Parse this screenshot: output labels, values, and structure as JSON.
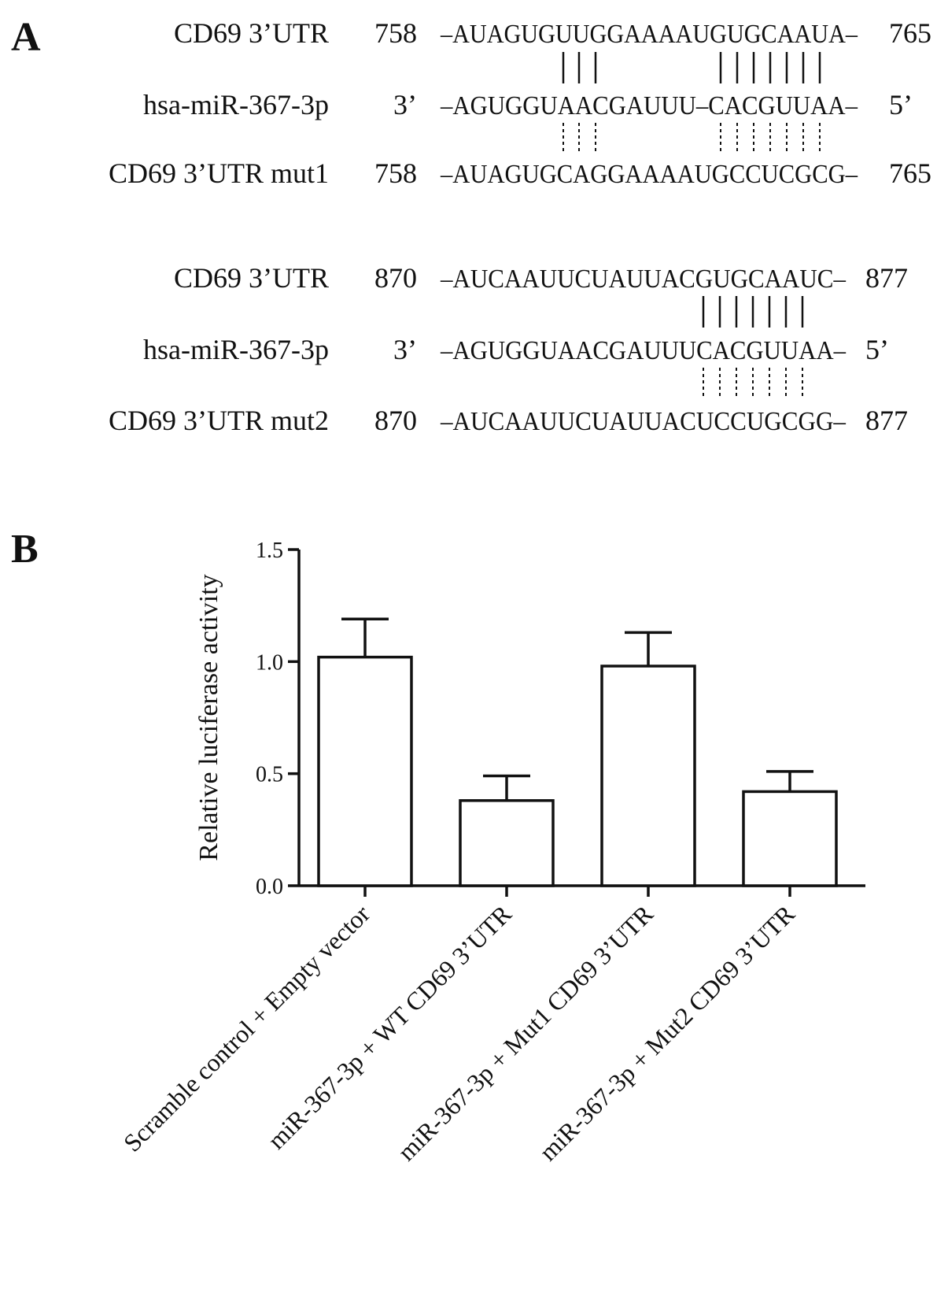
{
  "panel_a": {
    "letter": "A",
    "blocks": [
      {
        "rows": [
          {
            "label": "CD69 3’UTR",
            "start": "758",
            "seq": "–AUAGUGUUGGAAAAUGUGCAAUA–",
            "end": "765"
          },
          {
            "label": "hsa-miR-367-3p",
            "start": "3’",
            "seq": "–AGUGGUAACGAUUU–CACGUUAA–",
            "end": "5’"
          },
          {
            "label": "CD69 3’UTR mut1",
            "start": "758",
            "seq": "–AUAGUGCAGGAAAAUGCCUCGCG–",
            "end": "765"
          }
        ]
      },
      {
        "rows": [
          {
            "label": "CD69 3’UTR",
            "start": "870",
            "seq": "–AUCAAUUCUAUUACGUGCAAUC–",
            "end": "877"
          },
          {
            "label": "hsa-miR-367-3p",
            "start": "3’",
            "seq": "–AGUGGUAACGAUUUCACGUUAA–",
            "end": "5’"
          },
          {
            "label": "CD69 3’UTR mut2",
            "start": "870",
            "seq": "–AUCAAUUCUAUUACUCCUGCGG–",
            "end": "877"
          }
        ]
      }
    ]
  },
  "panel_b": {
    "letter": "B"
  },
  "chart_data": {
    "type": "bar",
    "categories": [
      "Scramble control + Empty vector",
      "miR-367-3p + WT CD69 3’UTR",
      "miR-367-3p + Mut1 CD69 3’UTR",
      "miR-367-3p + Mut2 CD69 3’UTR"
    ],
    "values": [
      1.02,
      0.38,
      0.98,
      0.42
    ],
    "errors": [
      0.17,
      0.11,
      0.15,
      0.09
    ],
    "ylabel": "Relative luciferase activity",
    "ylim": [
      0.0,
      1.5
    ],
    "yticks": [
      "0.0",
      "0.5",
      "1.0",
      "1.5"
    ],
    "grid": false,
    "bar_fill": "#ffffff",
    "bar_stroke": "#111111"
  }
}
